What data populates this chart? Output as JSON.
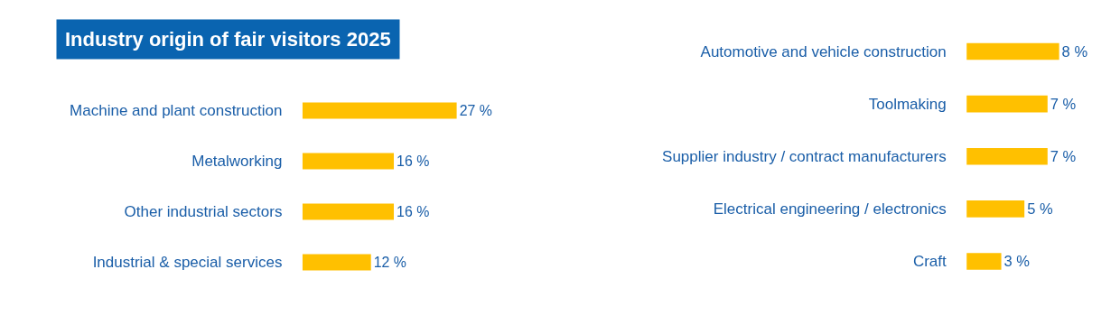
{
  "chart_data": [
    {
      "type": "bar",
      "orientation": "horizontal",
      "title": "Industry origin of fair visitors 2025",
      "categories": [
        "Machine and plant construction",
        "Metalworking",
        "Other industrial sectors",
        "Industrial & special services"
      ],
      "values": [
        27,
        16,
        16,
        12
      ],
      "value_labels": [
        "27 %",
        "16 %",
        "16 %",
        "12 %"
      ],
      "color": "#ffc000",
      "tick_labels": "y"
    },
    {
      "type": "bar",
      "orientation": "horizontal",
      "categories": [
        "Automotive and vehicle construction",
        "Toolmaking",
        "Supplier industry / contract manufacturers",
        "Electrical engineering / electronics",
        "Craft"
      ],
      "values": [
        8,
        7,
        7,
        5,
        3
      ],
      "value_labels": [
        "8 %",
        "7 %",
        "7 %",
        "5 %",
        "3 %"
      ],
      "color": "#ffc000",
      "tick_labels": "y"
    }
  ]
}
